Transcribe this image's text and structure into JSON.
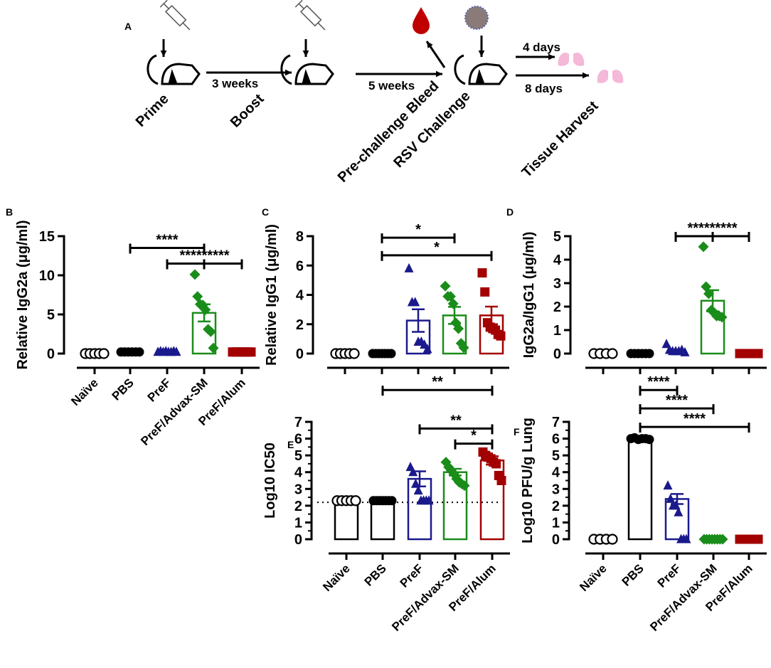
{
  "colors": {
    "naive": "#000000",
    "pbs": "#000000",
    "pref": "#1a1a8c",
    "advax": "#1a8c1a",
    "alum": "#a30000",
    "blood": "#c00000",
    "lung": "#f4b8d8"
  },
  "schematic": {
    "letter": "A",
    "steps": [
      "Prime",
      "Boost",
      "Pre-challenge Bleed",
      "RSV Challenge",
      "Tissue Harvest"
    ],
    "intervals": [
      "3 weeks",
      "5 weeks",
      "4 days",
      "8 days"
    ],
    "icons": [
      "syringe-icon",
      "mouse-icon",
      "blood-drop-icon",
      "virus-icon",
      "lung-icon"
    ]
  },
  "chart_data": [
    {
      "panel": "B",
      "type": "bar",
      "ylabel": "Relative IgG2a (μg/ml)",
      "ylim": [
        0,
        15
      ],
      "yticks": [
        "0",
        "5",
        "10",
        "15"
      ],
      "categories": [
        "Naïve",
        "PBS",
        "PreF",
        "PreF/Advax-SM",
        "PreF/Alum"
      ],
      "means": [
        0,
        0.2,
        0.2,
        5.2,
        0.2
      ],
      "sem": [
        0,
        0,
        0.05,
        1.1,
        0
      ],
      "points": [
        [
          0,
          0,
          0,
          0,
          0
        ],
        [
          0.2,
          0.2,
          0.2,
          0.2,
          0.2,
          0.2
        ],
        [
          0.2,
          0.3,
          0.2,
          0.3,
          0.2,
          0.2,
          0.3,
          0.2
        ],
        [
          10.1,
          7.3,
          6.3,
          6.2,
          5.6,
          3.1,
          2.8,
          0.7
        ],
        [
          0.2,
          0.2,
          0.2,
          0.2,
          0.2,
          0.2,
          0.2,
          0.2
        ]
      ],
      "significance": [
        {
          "from": 1,
          "to": 3,
          "y": 13.5,
          "label": "****"
        },
        {
          "from": 2,
          "to": 4,
          "mid": 3,
          "y": 11.5,
          "label": "*********"
        }
      ]
    },
    {
      "panel": "C",
      "type": "bar",
      "ylabel": "Relative IgG1 (μg/ml)",
      "ylim": [
        0,
        8
      ],
      "yticks": [
        "0",
        "2",
        "4",
        "6",
        "8"
      ],
      "categories": [
        "Naïve",
        "PBS",
        "PreF",
        "PreF/Advax-SM",
        "PreF/Alum"
      ],
      "means": [
        0,
        0,
        2.25,
        2.6,
        2.6
      ],
      "sem": [
        0,
        0,
        0.77,
        0.58,
        0.6
      ],
      "points": [
        [
          0,
          0,
          0,
          0,
          0
        ],
        [
          0,
          0,
          0,
          0,
          0,
          0,
          0
        ],
        [
          5.8,
          3.5,
          3.5,
          0.8,
          0.8,
          0.6,
          0.3
        ],
        [
          4.6,
          3.9,
          3.9,
          3.4,
          2.1,
          1.7,
          0.7,
          0.4
        ],
        [
          5.5,
          4.2,
          2.1,
          1.8,
          1.7,
          1.6,
          1.3,
          1.2
        ]
      ],
      "significance": [
        {
          "from": 1,
          "to": 3,
          "y": 7.9,
          "label": "*"
        },
        {
          "from": 1,
          "to": 4,
          "y": 6.7,
          "label": "*"
        }
      ]
    },
    {
      "panel": "D",
      "type": "bar",
      "ylabel": "IgG2a/IgG1 (μg/ml)",
      "ylim": [
        0,
        5
      ],
      "yticks": [
        "0",
        "1",
        "2",
        "3",
        "4",
        "5"
      ],
      "categories": [
        "Naïve",
        "PBS",
        "PreF",
        "PreF/Advax-SM",
        "PreF/Alum"
      ],
      "means": [
        0,
        0,
        0.15,
        2.25,
        0
      ],
      "sem": [
        0,
        0,
        0.05,
        0.45,
        0
      ],
      "points": [
        [
          0,
          0,
          0,
          0
        ],
        [
          0,
          0,
          0,
          0,
          0,
          0
        ],
        [
          0.4,
          0.15,
          0.1,
          0.1,
          0.1,
          0.15,
          0.05
        ],
        [
          4.55,
          2.85,
          2.55,
          1.85,
          1.75,
          1.6,
          1.6,
          1.55
        ],
        [
          0,
          0,
          0,
          0,
          0,
          0,
          0,
          0
        ]
      ],
      "significance": [
        {
          "from": 2,
          "to": 4,
          "mid": 3,
          "y": 5.0,
          "label": "*********"
        }
      ]
    },
    {
      "panel": "E",
      "type": "bar",
      "ylabel": "Log10 IC50",
      "ylim": [
        0,
        7
      ],
      "yticks": [
        "0",
        "1",
        "2",
        "3",
        "4",
        "5",
        "6",
        "7"
      ],
      "categories": [
        "Naïve",
        "PBS",
        "PreF",
        "PreF/Advax-SM",
        "PreF/Alum"
      ],
      "means": [
        2.3,
        2.3,
        3.6,
        4.0,
        4.7
      ],
      "sem": [
        0,
        0,
        0.45,
        0.2,
        0.25
      ],
      "reference_line": 2.2,
      "points": [
        [
          2.3,
          2.3,
          2.3,
          2.3,
          2.3
        ],
        [
          2.3,
          2.3,
          2.3,
          2.3,
          2.3,
          2.3,
          2.3
        ],
        [
          4.3,
          4.0,
          3.3,
          2.9,
          2.3,
          2.3,
          2.3,
          2.3
        ],
        [
          4.6,
          4.3,
          4.1,
          3.9,
          3.6,
          3.4,
          3.3,
          3.2
        ],
        [
          5.2,
          5.0,
          4.9,
          4.8,
          4.6,
          4.5,
          3.8,
          3.5
        ]
      ],
      "significance": [
        {
          "from": 1,
          "to": 4,
          "y": 8.9,
          "label": "**"
        },
        {
          "from": 2,
          "to": 4,
          "y": 6.6,
          "label": "**"
        },
        {
          "from": 3,
          "to": 4,
          "y": 5.7,
          "label": "*"
        }
      ]
    },
    {
      "panel": "F",
      "type": "bar",
      "ylabel": "Log10 PFU/g Lung",
      "ylim": [
        0,
        7
      ],
      "yticks": [
        "0",
        "1",
        "2",
        "3",
        "4",
        "5",
        "6",
        "7"
      ],
      "categories": [
        "Naïve",
        "PBS",
        "PreF",
        "PreF/Advax-SM",
        "PreF/Alum"
      ],
      "means": [
        0,
        6.0,
        2.4,
        0,
        0
      ],
      "sem": [
        0,
        0.05,
        0.3,
        0,
        0
      ],
      "points": [
        [
          0,
          0,
          0,
          0
        ],
        [
          6.0,
          6.05,
          5.95,
          6.0,
          6.0,
          5.95
        ],
        [
          3.2,
          2.4,
          2.0,
          2.0,
          1.6,
          0,
          0,
          0
        ],
        [
          0,
          0,
          0,
          0,
          0,
          0,
          0,
          0
        ],
        [
          0,
          0,
          0,
          0,
          0,
          0,
          0,
          0
        ]
      ],
      "significance": [
        {
          "from": 1,
          "to": 2,
          "y": 8.9,
          "label": "****"
        },
        {
          "from": 1,
          "to": 3,
          "y": 7.8,
          "label": "****"
        },
        {
          "from": 1,
          "to": 4,
          "y": 6.7,
          "label": "****"
        }
      ]
    }
  ]
}
